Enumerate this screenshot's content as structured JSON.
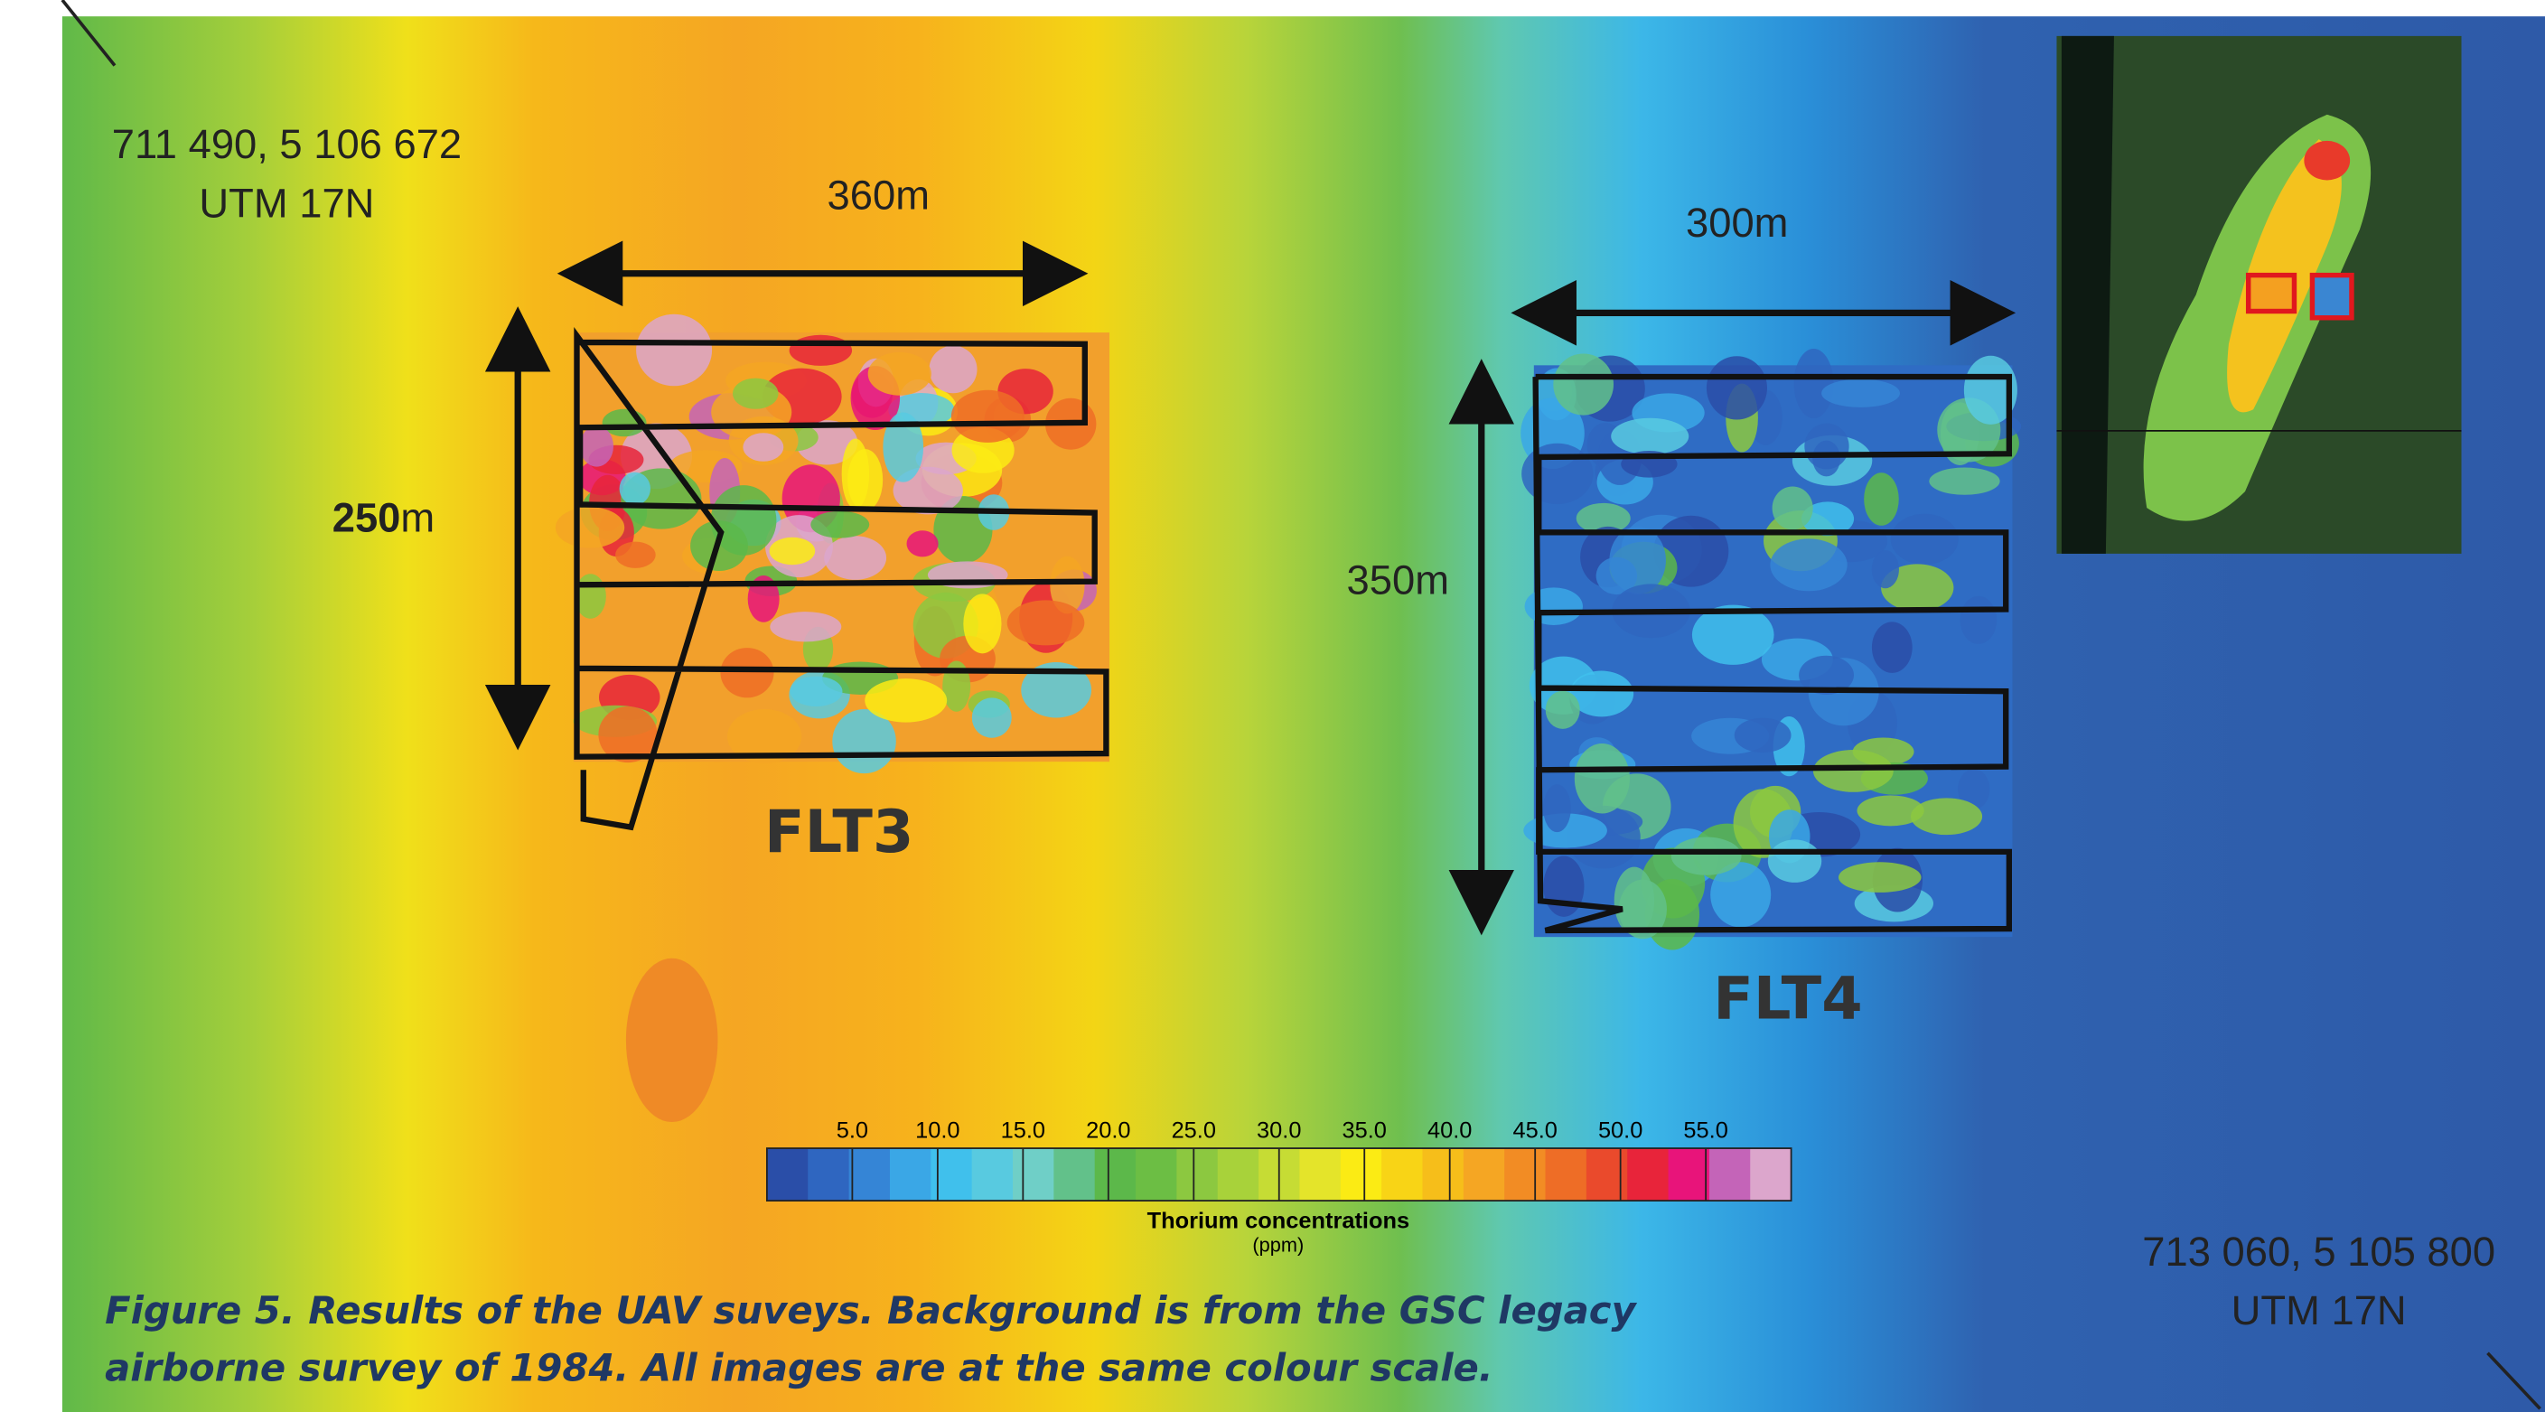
{
  "corner_top_left": {
    "coords": "711 490, 5 106 672",
    "zone": "UTM 17N"
  },
  "corner_bottom_right": {
    "coords": "713 060, 5 105 800",
    "zone": "UTM 17N"
  },
  "flt3": {
    "label": "FLT3",
    "width": "360m",
    "height": {
      "number": "250",
      "unit": "m"
    }
  },
  "flt4": {
    "label": "FLT4",
    "width": "300m",
    "height": "350m"
  },
  "colorbar": {
    "title": "Thorium concentrations",
    "unit": "(ppm)",
    "lim": [
      0,
      60
    ],
    "ticks": [
      {
        "value": 5,
        "label": "5.0"
      },
      {
        "value": 10,
        "label": "10.0"
      },
      {
        "value": 15,
        "label": "15.0"
      },
      {
        "value": 20,
        "label": "20.0"
      },
      {
        "value": 25,
        "label": "25.0"
      },
      {
        "value": 30,
        "label": "30.0"
      },
      {
        "value": 35,
        "label": "35.0"
      },
      {
        "value": 40,
        "label": "40.0"
      },
      {
        "value": 45,
        "label": "45.0"
      },
      {
        "value": 50,
        "label": "50.0"
      },
      {
        "value": 55,
        "label": "55.0"
      }
    ],
    "colors": [
      "#2a4ea8",
      "#2f66c0",
      "#3585d6",
      "#3aa7e6",
      "#40c0ec",
      "#58cae0",
      "#6fcfc7",
      "#62c18a",
      "#5cb84a",
      "#6cbe44",
      "#8cc840",
      "#a8d23a",
      "#c6dc34",
      "#e4e42a",
      "#fbeb14",
      "#f8d416",
      "#f6be1a",
      "#f5a623",
      "#f28c24",
      "#ee6d26",
      "#ea4a2c",
      "#e8243a",
      "#e8147a",
      "#c464b8",
      "#dca6cc"
    ]
  },
  "caption": [
    "Figure 5. Results of the UAV suveys. Background is from the GSC legacy",
    "airborne survey  of 1984. All images are at the same colour scale."
  ]
}
